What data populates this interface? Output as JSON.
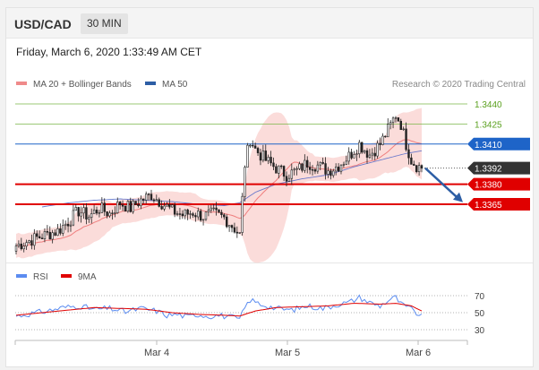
{
  "header": {
    "symbol": "USD/CAD",
    "timeframe": "30 MIN"
  },
  "timestamp": "Friday, March 6, 2020 1:33:49 AM CET",
  "legend": {
    "bb_label": "MA 20 + Bollinger Bands",
    "ma50_label": "MA 50",
    "rsi_label": "RSI",
    "ma9_label": "9MA"
  },
  "credit": "Research © 2020 Trading Central",
  "colors": {
    "resistance": "#7ab648",
    "pivot": "#1e64c8",
    "support": "#e00000",
    "candle": "#222222",
    "bollinger_fill": "#fbd8d6",
    "ma20": "#ef7e7e",
    "ma50": "#5067c8",
    "rsi": "#5b8cf0",
    "rsi_ma": "#e00000",
    "arrow": "#2d5ea5"
  },
  "chart_data": [
    {
      "type": "candlestick",
      "title": "USD/CAD",
      "ylim": [
        1.333,
        1.3455
      ],
      "x_ticks": [
        "Mar 4",
        "Mar 5",
        "Mar 6"
      ],
      "current_price": 1.3392,
      "levels": [
        {
          "value": 1.344,
          "label": "1.3440",
          "kind": "resistance"
        },
        {
          "value": 1.3425,
          "label": "1.3425",
          "kind": "resistance"
        },
        {
          "value": 1.341,
          "label": "1.3410",
          "kind": "pivot"
        },
        {
          "value": 1.338,
          "label": "1.3380",
          "kind": "support"
        },
        {
          "value": 1.3365,
          "label": "1.3365",
          "kind": "support"
        }
      ],
      "current_label": "1.3392",
      "series": [
        {
          "name": "MA 20 + Bollinger Bands",
          "kind": "bollinger"
        },
        {
          "name": "MA 50",
          "kind": "ma"
        }
      ],
      "anchors": [
        [
          0,
          1.3334
        ],
        [
          8,
          1.334
        ],
        [
          16,
          1.3345
        ],
        [
          20,
          1.3352
        ],
        [
          24,
          1.336
        ],
        [
          28,
          1.3356
        ],
        [
          32,
          1.3362
        ],
        [
          36,
          1.3358
        ],
        [
          40,
          1.3366
        ],
        [
          44,
          1.3362
        ],
        [
          48,
          1.3368
        ],
        [
          52,
          1.3372
        ],
        [
          56,
          1.3366
        ],
        [
          60,
          1.336
        ],
        [
          64,
          1.3357
        ],
        [
          68,
          1.3359
        ],
        [
          72,
          1.3356
        ],
        [
          76,
          1.3358
        ],
        [
          80,
          1.3355
        ],
        [
          84,
          1.3347
        ],
        [
          86,
          1.3342
        ],
        [
          88,
          1.3395
        ],
        [
          90,
          1.3414
        ],
        [
          92,
          1.3406
        ],
        [
          96,
          1.3398
        ],
        [
          100,
          1.3392
        ],
        [
          104,
          1.3387
        ],
        [
          108,
          1.339
        ],
        [
          112,
          1.3396
        ],
        [
          116,
          1.3394
        ],
        [
          120,
          1.339
        ],
        [
          124,
          1.3394
        ],
        [
          128,
          1.3401
        ],
        [
          132,
          1.341
        ],
        [
          136,
          1.3402
        ],
        [
          140,
          1.341
        ],
        [
          144,
          1.3424
        ],
        [
          146,
          1.3432
        ],
        [
          148,
          1.3425
        ],
        [
          150,
          1.341
        ],
        [
          152,
          1.3398
        ],
        [
          154,
          1.3394
        ],
        [
          156,
          1.3392
        ]
      ],
      "ma50_anchors": [
        [
          10,
          1.3363
        ],
        [
          20,
          1.3366
        ],
        [
          30,
          1.3368
        ],
        [
          40,
          1.3369
        ],
        [
          50,
          1.3368
        ],
        [
          60,
          1.3367
        ],
        [
          70,
          1.3365
        ],
        [
          80,
          1.3364
        ],
        [
          86,
          1.3366
        ],
        [
          92,
          1.3374
        ],
        [
          100,
          1.338
        ],
        [
          110,
          1.3384
        ],
        [
          120,
          1.3387
        ],
        [
          130,
          1.3393
        ],
        [
          140,
          1.3398
        ],
        [
          150,
          1.3403
        ],
        [
          156,
          1.3405
        ]
      ]
    },
    {
      "type": "line",
      "title": "RSI",
      "ylim": [
        20,
        80
      ],
      "y_ticks": [
        70,
        50,
        30
      ],
      "series": [
        {
          "name": "RSI",
          "kind": "rsi"
        },
        {
          "name": "9MA",
          "kind": "ma"
        }
      ],
      "rsi_anchors": [
        [
          0,
          46
        ],
        [
          6,
          49
        ],
        [
          12,
          52
        ],
        [
          18,
          56
        ],
        [
          24,
          58
        ],
        [
          30,
          54
        ],
        [
          36,
          55
        ],
        [
          42,
          51
        ],
        [
          48,
          55
        ],
        [
          54,
          52
        ],
        [
          58,
          47
        ],
        [
          62,
          48
        ],
        [
          66,
          45
        ],
        [
          70,
          48
        ],
        [
          74,
          46
        ],
        [
          78,
          47
        ],
        [
          82,
          45
        ],
        [
          84,
          44
        ],
        [
          86,
          42
        ],
        [
          88,
          56
        ],
        [
          90,
          65
        ],
        [
          94,
          60
        ],
        [
          100,
          55
        ],
        [
          106,
          53
        ],
        [
          112,
          58
        ],
        [
          118,
          55
        ],
        [
          124,
          60
        ],
        [
          128,
          62
        ],
        [
          132,
          68
        ],
        [
          136,
          62
        ],
        [
          140,
          58
        ],
        [
          144,
          66
        ],
        [
          146,
          68
        ],
        [
          148,
          60
        ],
        [
          152,
          54
        ],
        [
          156,
          45
        ]
      ],
      "ma9_anchors": [
        [
          0,
          47
        ],
        [
          10,
          50
        ],
        [
          20,
          53
        ],
        [
          30,
          56
        ],
        [
          40,
          55
        ],
        [
          50,
          54
        ],
        [
          60,
          50
        ],
        [
          70,
          48
        ],
        [
          80,
          47
        ],
        [
          86,
          46
        ],
        [
          92,
          52
        ],
        [
          100,
          56
        ],
        [
          110,
          57
        ],
        [
          120,
          58
        ],
        [
          130,
          61
        ],
        [
          140,
          60
        ],
        [
          146,
          61
        ],
        [
          152,
          58
        ],
        [
          156,
          52
        ]
      ]
    }
  ]
}
